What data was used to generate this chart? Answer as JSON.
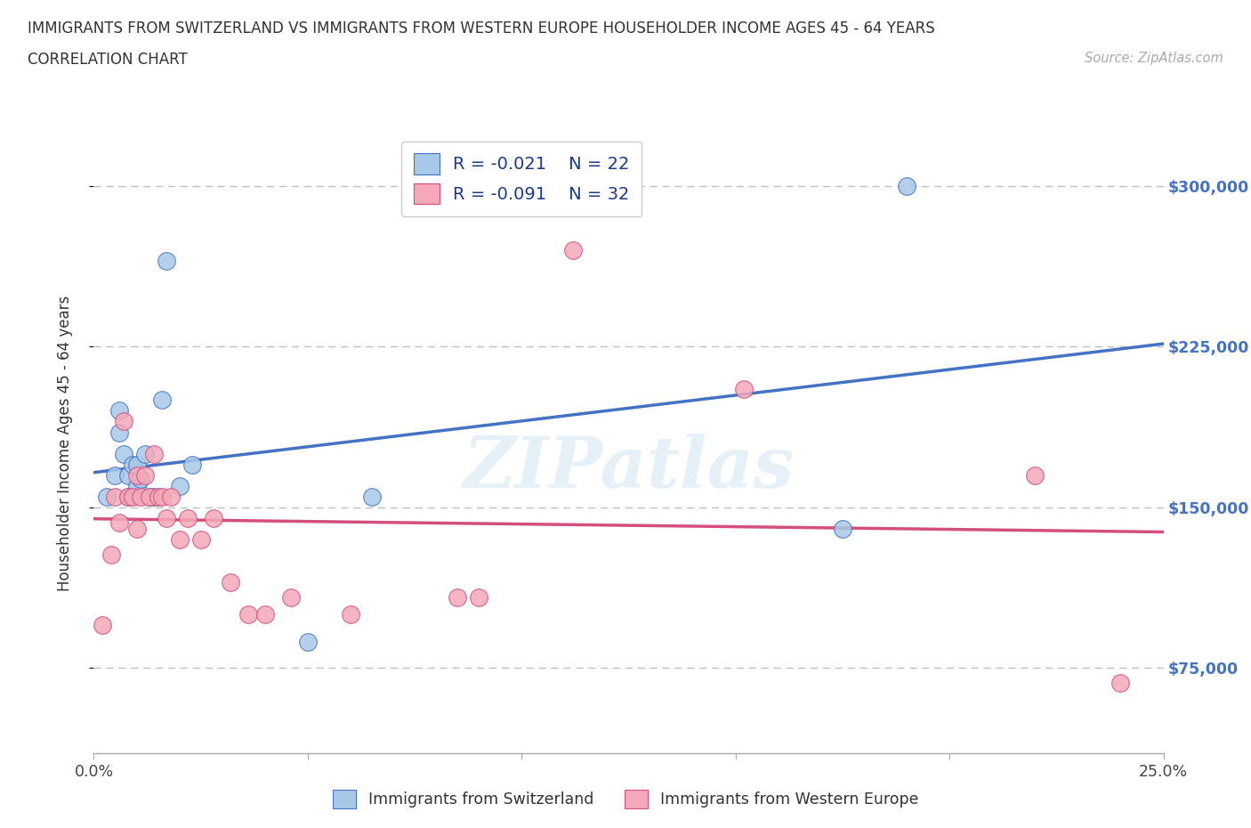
{
  "title_line1": "IMMIGRANTS FROM SWITZERLAND VS IMMIGRANTS FROM WESTERN EUROPE HOUSEHOLDER INCOME AGES 45 - 64 YEARS",
  "title_line2": "CORRELATION CHART",
  "source_text": "Source: ZipAtlas.com",
  "ylabel": "Householder Income Ages 45 - 64 years",
  "xlim": [
    0.0,
    0.25
  ],
  "ylim": [
    35000,
    325000
  ],
  "x_ticks": [
    0.0,
    0.05,
    0.1,
    0.15,
    0.2,
    0.25
  ],
  "x_tick_labels": [
    "0.0%",
    "",
    "",
    "",
    "",
    "25.0%"
  ],
  "y_ticks": [
    75000,
    150000,
    225000,
    300000
  ],
  "y_tick_labels": [
    "$75,000",
    "$150,000",
    "$225,000",
    "$300,000"
  ],
  "watermark": "ZIPatlas",
  "legend_R1": "R = -0.021",
  "legend_N1": "N = 22",
  "legend_R2": "R = -0.091",
  "legend_N2": "N = 32",
  "color_swiss": "#a8c8e8",
  "color_western": "#f4a8b8",
  "color_swiss_line": "#4472c4",
  "color_western_line": "#d4507a",
  "background_color": "#ffffff",
  "dashed_line_color": "#c0c0c0",
  "swiss_x": [
    0.003,
    0.005,
    0.006,
    0.006,
    0.007,
    0.008,
    0.008,
    0.009,
    0.01,
    0.01,
    0.011,
    0.012,
    0.013,
    0.014,
    0.016,
    0.017,
    0.02,
    0.023,
    0.05,
    0.065,
    0.175,
    0.19
  ],
  "swiss_y": [
    155000,
    165000,
    185000,
    195000,
    175000,
    155000,
    165000,
    170000,
    170000,
    160000,
    163000,
    175000,
    155000,
    155000,
    200000,
    265000,
    160000,
    170000,
    87000,
    155000,
    140000,
    300000
  ],
  "western_x": [
    0.002,
    0.004,
    0.005,
    0.006,
    0.007,
    0.008,
    0.009,
    0.01,
    0.01,
    0.011,
    0.012,
    0.013,
    0.014,
    0.015,
    0.016,
    0.017,
    0.018,
    0.02,
    0.022,
    0.025,
    0.028,
    0.032,
    0.036,
    0.04,
    0.046,
    0.06,
    0.085,
    0.09,
    0.112,
    0.152,
    0.22,
    0.24
  ],
  "western_y": [
    95000,
    128000,
    155000,
    143000,
    190000,
    155000,
    155000,
    165000,
    140000,
    155000,
    165000,
    155000,
    175000,
    155000,
    155000,
    145000,
    155000,
    135000,
    145000,
    135000,
    145000,
    115000,
    100000,
    100000,
    108000,
    100000,
    108000,
    108000,
    270000,
    205000,
    165000,
    68000
  ],
  "swiss_label": "Immigrants from Switzerland",
  "western_label": "Immigrants from Western Europe"
}
